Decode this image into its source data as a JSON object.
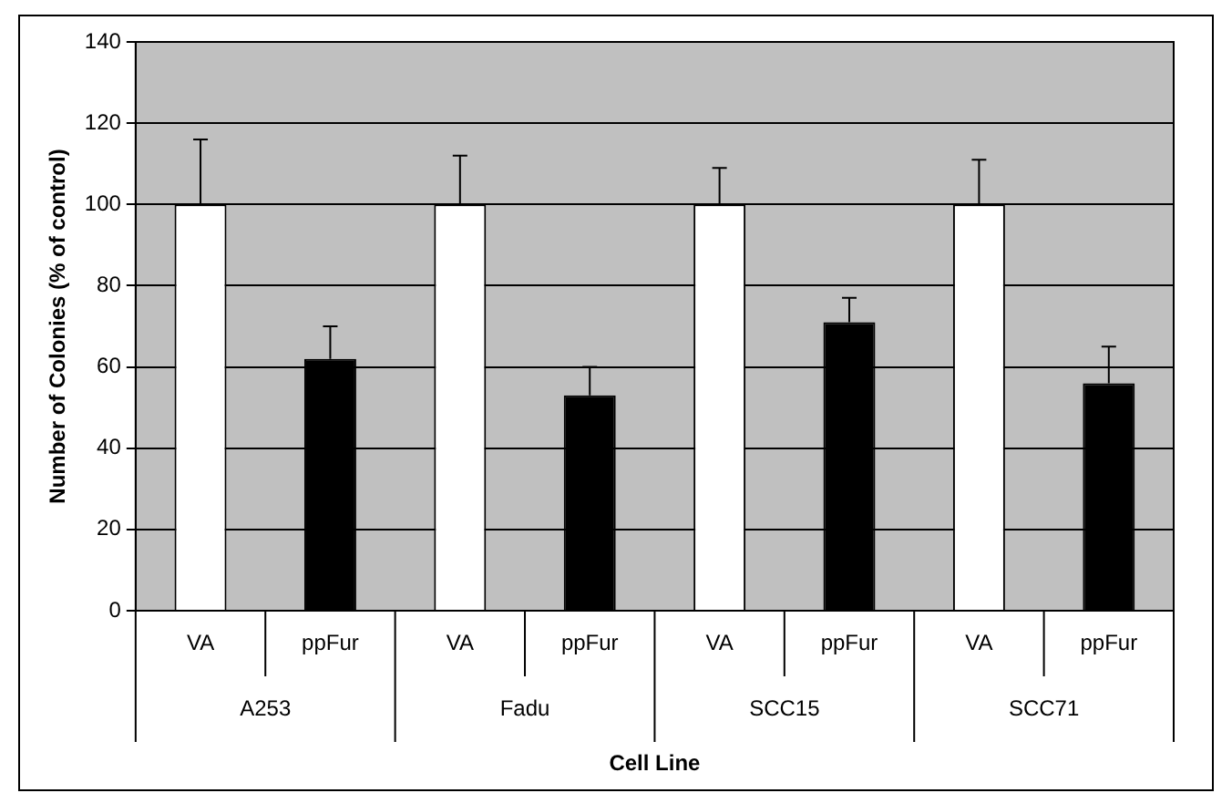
{
  "chart_data": {
    "type": "bar",
    "xlabel": "Cell Line",
    "ylabel": "Number of Colonies (% of control)",
    "categories": [
      "A253",
      "Fadu",
      "SCC15",
      "SCC71"
    ],
    "series": [
      {
        "name": "VA",
        "color": "#ffffff",
        "values": [
          100,
          100,
          100,
          100
        ],
        "errors": [
          [
            100,
            116
          ],
          [
            100,
            112
          ],
          [
            100,
            109
          ],
          [
            100,
            111
          ]
        ]
      },
      {
        "name": "ppFur",
        "color": "#000000",
        "values": [
          62,
          53,
          71,
          56
        ],
        "errors": [
          [
            62,
            70
          ],
          [
            53,
            60
          ],
          [
            71,
            77
          ],
          [
            56,
            65
          ]
        ]
      }
    ],
    "ylim": [
      0,
      140
    ],
    "yticks": [
      0,
      20,
      40,
      60,
      80,
      100,
      120,
      140
    ],
    "grid": "y",
    "legend": false
  }
}
